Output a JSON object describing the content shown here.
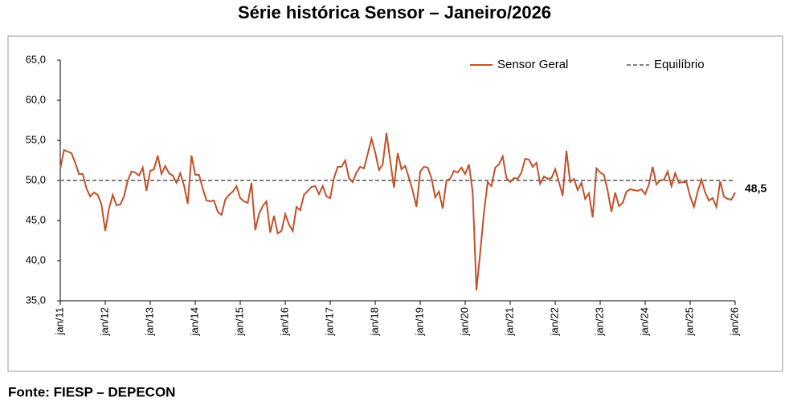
{
  "chart_data": {
    "type": "line",
    "title": "Série histórica Sensor – Janeiro/2026",
    "source": "Fonte: FIESP – DEPECON",
    "categories": [
      "jan/11",
      null,
      null,
      null,
      null,
      null,
      null,
      null,
      null,
      null,
      null,
      null,
      "jan/12",
      null,
      null,
      null,
      null,
      null,
      null,
      null,
      null,
      null,
      null,
      null,
      "jan/13",
      null,
      null,
      null,
      null,
      null,
      null,
      null,
      null,
      null,
      null,
      null,
      "jan/14",
      null,
      null,
      null,
      null,
      null,
      null,
      null,
      null,
      null,
      null,
      null,
      "jan/15",
      null,
      null,
      null,
      null,
      null,
      null,
      null,
      null,
      null,
      null,
      null,
      "jan/16",
      null,
      null,
      null,
      null,
      null,
      null,
      null,
      null,
      null,
      null,
      null,
      "jan/17",
      null,
      null,
      null,
      null,
      null,
      null,
      null,
      null,
      null,
      null,
      null,
      "jan/18",
      null,
      null,
      null,
      null,
      null,
      null,
      null,
      null,
      null,
      null,
      null,
      "jan/19",
      null,
      null,
      null,
      null,
      null,
      null,
      null,
      null,
      null,
      null,
      null,
      "jan/20",
      null,
      null,
      null,
      null,
      null,
      null,
      null,
      null,
      null,
      null,
      null,
      "jan/21",
      null,
      null,
      null,
      null,
      null,
      null,
      null,
      null,
      null,
      null,
      null,
      "jan/22",
      null,
      null,
      null,
      null,
      null,
      null,
      null,
      null,
      null,
      null,
      null,
      "jan/23",
      null,
      null,
      null,
      null,
      null,
      null,
      null,
      null,
      null,
      null,
      null,
      "jan/24",
      null,
      null,
      null,
      null,
      null,
      null,
      null,
      null,
      null,
      null,
      null,
      "jan/25",
      null,
      null,
      null,
      null,
      null,
      null,
      null,
      null,
      null,
      null,
      null,
      "jan/26"
    ],
    "series": [
      {
        "name": "Sensor Geral",
        "color": "#c0522a",
        "values": [
          51.5,
          53.8,
          53.6,
          53.4,
          52.2,
          50.8,
          50.8,
          49.0,
          48.0,
          48.5,
          48.2,
          47.0,
          43.7,
          46.5,
          48.2,
          46.9,
          47.0,
          48.0,
          50.0,
          51.1,
          51.0,
          50.6,
          51.6,
          48.7,
          51.2,
          51.4,
          53.1,
          50.8,
          51.8,
          50.9,
          50.6,
          49.7,
          50.9,
          49.4,
          47.1,
          53.1,
          50.7,
          50.7,
          49.0,
          47.5,
          47.4,
          47.5,
          46.1,
          45.7,
          47.6,
          48.2,
          48.6,
          49.3,
          47.8,
          47.4,
          47.2,
          49.7,
          43.8,
          45.8,
          46.8,
          47.4,
          43.5,
          45.6,
          43.4,
          43.7,
          45.8,
          44.5,
          43.7,
          46.7,
          46.3,
          48.2,
          48.7,
          49.2,
          49.3,
          48.3,
          49.3,
          48.0,
          47.8,
          50.3,
          51.7,
          51.7,
          52.5,
          50.3,
          49.8,
          51.0,
          51.7,
          51.5,
          53.3,
          55.2,
          53.5,
          51.3,
          52.0,
          55.9,
          52.5,
          49.1,
          53.4,
          51.4,
          51.8,
          50.3,
          48.7,
          46.7,
          51.1,
          51.7,
          51.6,
          50.3,
          47.9,
          48.6,
          46.5,
          50.0,
          50.2,
          51.2,
          51.0,
          51.6,
          50.8,
          52.0,
          48.5,
          36.3,
          41.0,
          46.0,
          49.8,
          49.3,
          51.6,
          52.0,
          53.0,
          50.3,
          49.8,
          50.3,
          50.2,
          51.0,
          52.7,
          52.6,
          51.7,
          52.2,
          49.6,
          50.5,
          50.2,
          50.3,
          51.4,
          49.8,
          48.1,
          53.7,
          49.8,
          50.2,
          48.8,
          49.7,
          47.7,
          48.4,
          45.4,
          51.5,
          51.0,
          50.7,
          48.7,
          46.1,
          48.5,
          46.8,
          47.2,
          48.6,
          48.9,
          48.8,
          48.7,
          48.9,
          48.3,
          49.5,
          51.7,
          49.5,
          50.0,
          50.1,
          51.1,
          49.3,
          50.9,
          49.7,
          49.8,
          49.8,
          48.0,
          46.7,
          48.6,
          50.1,
          48.5,
          47.5,
          47.8,
          46.7,
          49.9,
          48.0,
          47.7,
          47.6,
          48.5
        ],
        "value_labels": [
          null,
          null,
          null,
          null,
          null,
          null,
          null,
          null,
          null,
          null,
          null,
          null,
          null,
          null,
          null,
          null,
          null,
          null,
          null,
          null,
          null,
          null,
          null,
          null,
          null,
          null,
          null,
          null,
          null,
          null,
          null,
          null,
          null,
          null,
          null,
          null,
          null,
          null,
          null,
          null,
          null,
          null,
          null,
          null,
          null,
          null,
          null,
          null,
          null,
          null,
          null,
          null,
          null,
          null,
          null,
          null,
          null,
          null,
          null,
          null,
          null,
          null,
          null,
          null,
          null,
          null,
          null,
          null,
          null,
          null,
          null,
          null,
          null,
          null,
          null,
          null,
          null,
          null,
          null,
          null,
          null,
          null,
          null,
          null,
          null,
          null,
          null,
          null,
          null,
          null,
          null,
          null,
          null,
          null,
          null,
          null,
          null,
          null,
          null,
          null,
          null,
          null,
          null,
          null,
          null,
          null,
          null,
          null,
          null,
          null,
          null,
          null,
          null,
          null,
          null,
          null,
          null,
          null,
          null,
          null,
          null,
          null,
          null,
          null,
          null,
          null,
          null,
          null,
          null,
          null,
          null,
          null,
          null,
          null,
          null,
          null,
          null,
          null,
          null,
          null,
          null,
          null,
          null,
          null,
          null,
          null,
          null,
          null,
          null,
          null,
          null,
          null,
          null,
          null,
          null,
          null,
          null,
          null,
          null,
          null,
          null,
          null,
          null,
          null,
          null,
          null,
          null,
          null,
          null,
          null,
          null,
          null,
          null,
          null,
          null,
          null,
          null,
          null,
          null,
          null,
          "48,5"
        ]
      }
    ],
    "reference_line": {
      "name": "Equilíbrio",
      "value": 50,
      "color": "#808080",
      "dashed": true
    },
    "ylim": [
      35,
      65
    ],
    "yticks": [
      {
        "value": 35,
        "label": "35,0"
      },
      {
        "value": 40,
        "label": "40,0"
      },
      {
        "value": 45,
        "label": "45,0"
      },
      {
        "value": 50,
        "label": "50,0"
      },
      {
        "value": 55,
        "label": "55,0"
      },
      {
        "value": 60,
        "label": "60,0"
      },
      {
        "value": 65,
        "label": "65,0"
      }
    ],
    "grid": false,
    "legend": "top-right"
  }
}
